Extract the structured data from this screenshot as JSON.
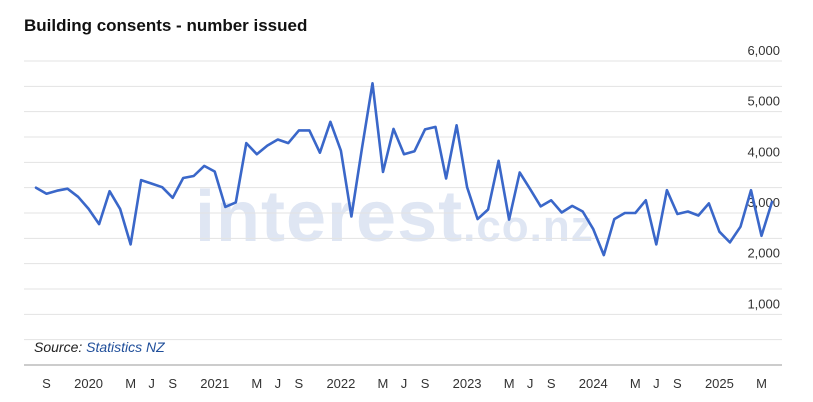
{
  "title": "Building consents - number issued",
  "source": {
    "label": "Source:",
    "link": "Statistics NZ"
  },
  "watermark": {
    "main": "interest",
    "suffix": ".co.nz"
  },
  "chart_data": {
    "type": "line",
    "title": "Building consents - number issued",
    "ylim": [
      0,
      6000
    ],
    "yticks": [
      1000,
      2000,
      3000,
      4000,
      5000,
      6000
    ],
    "ytick_labels": [
      "1,000",
      "2,000",
      "3,000",
      "4,000",
      "5,000",
      "6,000"
    ],
    "grid": true,
    "xlabels": [
      {
        "label": "S",
        "idx": 1
      },
      {
        "label": "2020",
        "idx": 5
      },
      {
        "label": "M",
        "idx": 9
      },
      {
        "label": "J",
        "idx": 11
      },
      {
        "label": "S",
        "idx": 13
      },
      {
        "label": "2021",
        "idx": 17
      },
      {
        "label": "M",
        "idx": 21
      },
      {
        "label": "J",
        "idx": 23
      },
      {
        "label": "S",
        "idx": 25
      },
      {
        "label": "2022",
        "idx": 29
      },
      {
        "label": "M",
        "idx": 33
      },
      {
        "label": "J",
        "idx": 35
      },
      {
        "label": "S",
        "idx": 37
      },
      {
        "label": "2023",
        "idx": 41
      },
      {
        "label": "M",
        "idx": 45
      },
      {
        "label": "J",
        "idx": 47
      },
      {
        "label": "S",
        "idx": 49
      },
      {
        "label": "2024",
        "idx": 53
      },
      {
        "label": "M",
        "idx": 57
      },
      {
        "label": "J",
        "idx": 59
      },
      {
        "label": "S",
        "idx": 61
      },
      {
        "label": "2025",
        "idx": 65
      },
      {
        "label": "M",
        "idx": 69
      }
    ],
    "series": [
      {
        "color": "#3a67c9",
        "values": [
          3500,
          3380,
          3440,
          3480,
          3320,
          3080,
          2780,
          3430,
          3080,
          2380,
          3650,
          3580,
          3510,
          3300,
          3690,
          3730,
          3930,
          3820,
          3120,
          3210,
          4380,
          4160,
          4330,
          4450,
          4380,
          4630,
          4630,
          4190,
          4800,
          4230,
          2930,
          4270,
          5560,
          3810,
          4660,
          4160,
          4220,
          4650,
          4700,
          3680,
          4730,
          3510,
          2880,
          3070,
          4030,
          2870,
          3800,
          3470,
          3130,
          3250,
          3010,
          3140,
          3030,
          2680,
          2170,
          2880,
          3000,
          3000,
          3250,
          2380,
          3450,
          2980,
          3030,
          2950,
          3190,
          2630,
          2420,
          2730,
          3450,
          2550,
          3220
        ]
      }
    ]
  }
}
